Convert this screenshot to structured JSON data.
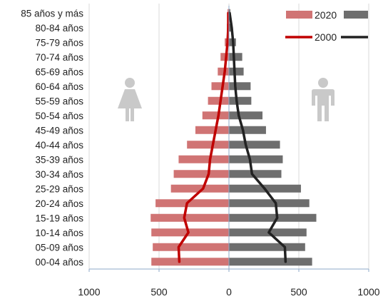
{
  "chart_data": {
    "type": "bar",
    "orientation": "horizontal",
    "subtype": "population-pyramid",
    "title": "",
    "xlabel": "",
    "ylabel": "",
    "xlim": [
      -1000,
      1000
    ],
    "xticks": [
      -1000,
      -500,
      0,
      500,
      1000
    ],
    "xtick_labels": [
      "1000",
      "500",
      "0",
      "500",
      "1000"
    ],
    "grid": "vertical",
    "legend_position": "top-right",
    "categories": [
      "00-04 años",
      "05-09 años",
      "10-14 años",
      "15-19 años",
      "20-24 años",
      "25-29 años",
      "30-34 años",
      "35-39 años",
      "40-44 años",
      "45-49 años",
      "50-54 años",
      "55-59 años",
      "60-64 años",
      "65-69 años",
      "70-74 años",
      "75-79 años",
      "80-84 años",
      "85 años y más"
    ],
    "series": [
      {
        "name": "2020",
        "kind": "bar",
        "side": "left",
        "color": "#d07474",
        "values": [
          555,
          545,
          555,
          560,
          525,
          415,
          395,
          360,
          300,
          240,
          190,
          150,
          125,
          80,
          60,
          30,
          15,
          10
        ]
      },
      {
        "name": "2020",
        "kind": "bar",
        "side": "right",
        "color": "#6e6e6e",
        "values": [
          595,
          545,
          555,
          625,
          575,
          515,
          375,
          385,
          365,
          265,
          240,
          160,
          155,
          105,
          95,
          50,
          25,
          10
        ]
      },
      {
        "name": "2000",
        "kind": "line",
        "side": "left",
        "color": "#c00000",
        "values": [
          355,
          360,
          290,
          320,
          300,
          185,
          145,
          135,
          115,
          95,
          75,
          60,
          45,
          30,
          20,
          10,
          5,
          5
        ]
      },
      {
        "name": "2000",
        "kind": "line",
        "side": "right",
        "color": "#222222",
        "values": [
          405,
          400,
          285,
          345,
          335,
          255,
          165,
          150,
          120,
          100,
          70,
          55,
          45,
          40,
          35,
          30,
          20,
          5
        ]
      }
    ]
  },
  "icons": {
    "left": "female-person-icon",
    "right": "male-person-icon"
  }
}
